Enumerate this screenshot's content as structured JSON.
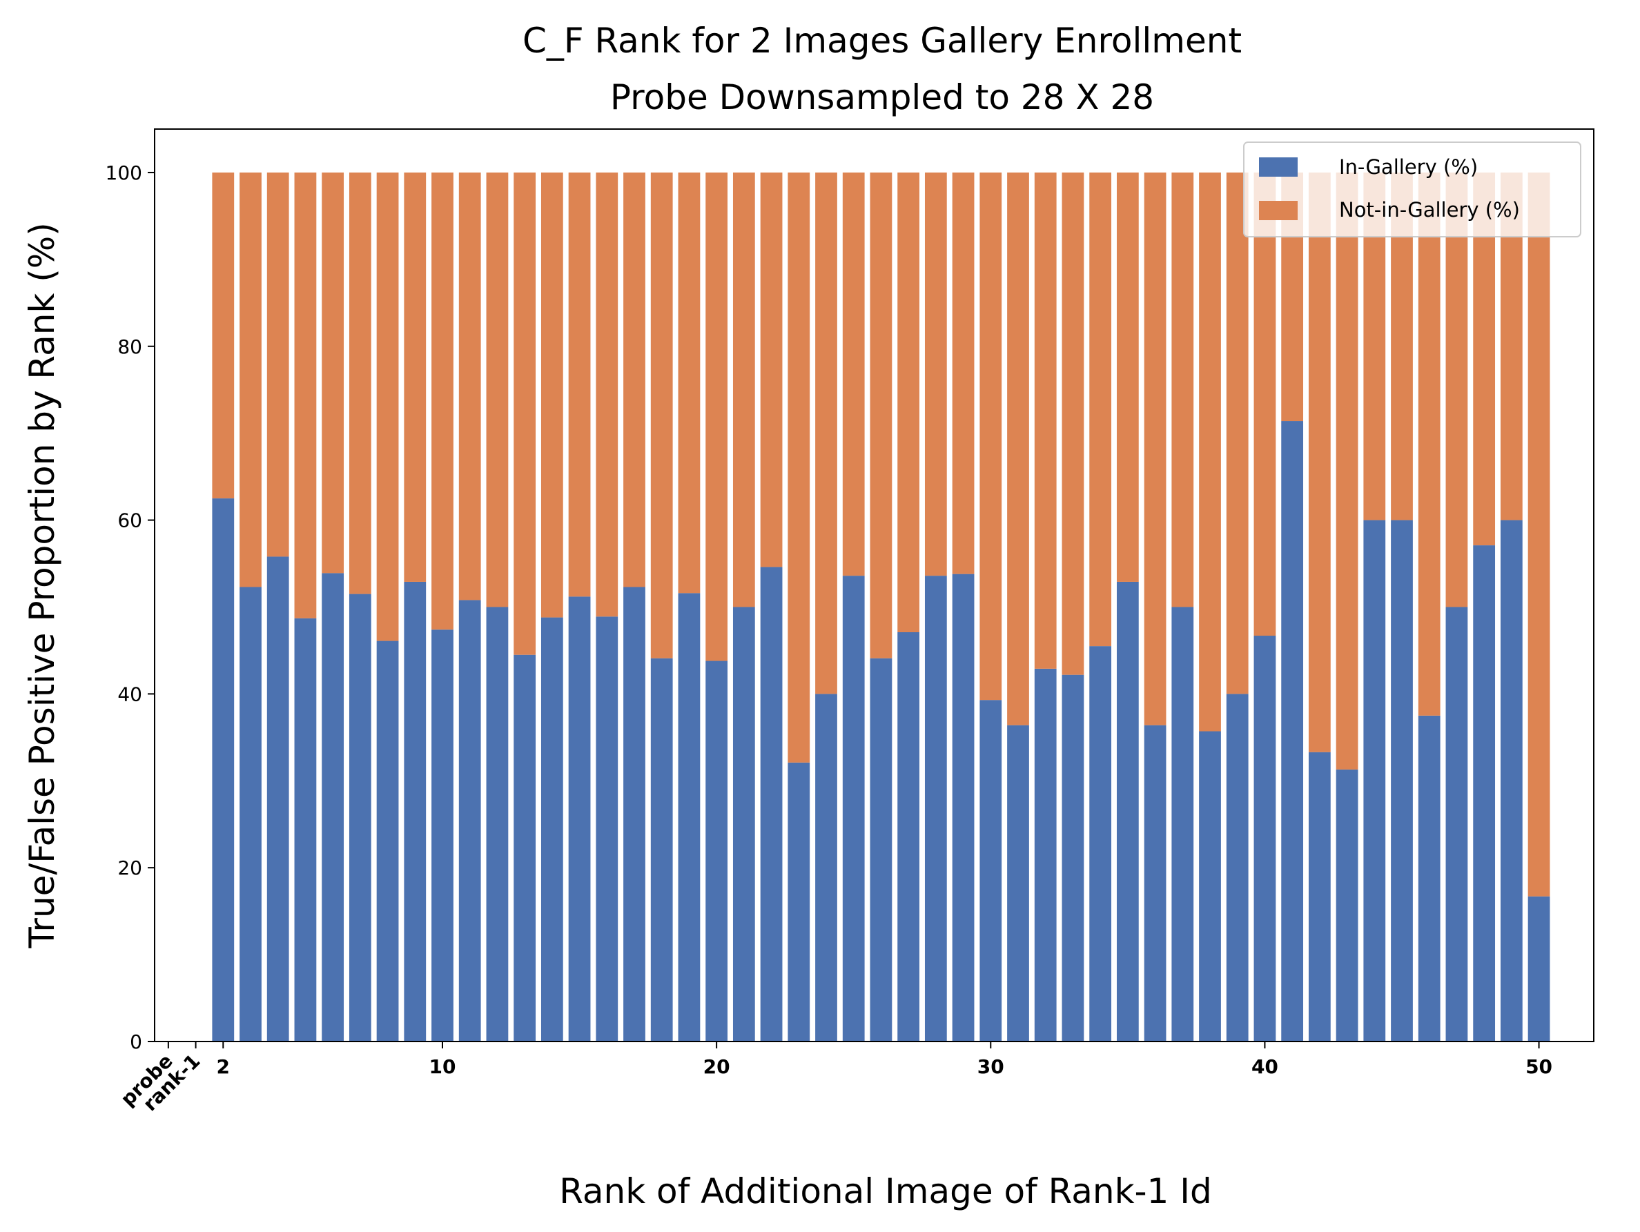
{
  "chart_data": {
    "type": "bar",
    "stacked": true,
    "title": "C_F Rank for 2 Images Gallery Enrollment",
    "subtitle": "Probe Downsampled to 28 X 28",
    "xlabel": "Rank of Additional Image of Rank-1 Id",
    "ylabel": "True/False Positive Proportion by Rank (%)",
    "ylim": [
      0,
      105
    ],
    "xlim": [
      -0.5,
      52
    ],
    "yticks": [
      0,
      20,
      40,
      60,
      80,
      100
    ],
    "xticks": [
      {
        "x": 0,
        "label": "probe"
      },
      {
        "x": 1,
        "label": "rank-1"
      },
      {
        "x": 2,
        "label": "2"
      },
      {
        "x": 10,
        "label": "10"
      },
      {
        "x": 20,
        "label": "20"
      },
      {
        "x": 30,
        "label": "30"
      },
      {
        "x": 40,
        "label": "40"
      },
      {
        "x": 50,
        "label": "50"
      }
    ],
    "x": [
      2,
      3,
      4,
      5,
      6,
      7,
      8,
      9,
      10,
      11,
      12,
      13,
      14,
      15,
      16,
      17,
      18,
      19,
      20,
      21,
      22,
      23,
      24,
      25,
      26,
      27,
      28,
      29,
      30,
      31,
      32,
      33,
      34,
      35,
      36,
      37,
      38,
      39,
      40,
      41,
      42,
      43,
      44,
      45,
      46,
      47,
      48,
      49,
      50
    ],
    "series": [
      {
        "name": "In-Gallery (%)",
        "color": "#4c72b0",
        "values": [
          62.5,
          52.3,
          55.8,
          48.7,
          53.9,
          51.5,
          46.1,
          52.9,
          47.4,
          50.8,
          50.0,
          44.5,
          48.8,
          51.2,
          48.9,
          52.3,
          44.1,
          51.6,
          43.8,
          50.0,
          54.6,
          32.1,
          40.0,
          53.6,
          44.1,
          47.1,
          53.6,
          53.8,
          39.3,
          36.4,
          42.9,
          42.2,
          45.5,
          52.9,
          36.4,
          50.0,
          35.7,
          40.0,
          46.7,
          71.4,
          33.3,
          31.3,
          60.0,
          60.0,
          37.5,
          50.0,
          57.1,
          60.0,
          16.7
        ]
      },
      {
        "name": "Not-in-Gallery (%)",
        "color": "#dd8452",
        "values": [
          37.5,
          47.7,
          44.2,
          51.3,
          46.1,
          48.5,
          53.9,
          47.1,
          52.6,
          49.2,
          50.0,
          55.5,
          51.2,
          48.8,
          51.1,
          47.7,
          55.9,
          48.4,
          56.2,
          50.0,
          45.4,
          67.9,
          60.0,
          46.4,
          55.9,
          52.9,
          46.4,
          46.2,
          60.7,
          63.6,
          57.1,
          57.8,
          54.5,
          47.1,
          63.6,
          50.0,
          64.3,
          60.0,
          53.3,
          28.6,
          66.7,
          68.7,
          40.0,
          40.0,
          62.5,
          50.0,
          42.9,
          40.0,
          83.3
        ]
      }
    ],
    "legend": {
      "placement": "top-right"
    },
    "grid": false
  }
}
